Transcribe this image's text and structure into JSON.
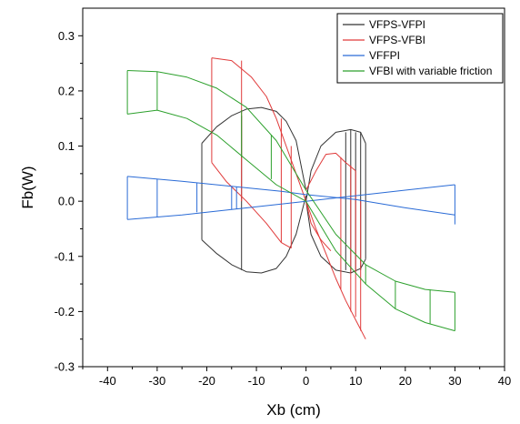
{
  "chart_data": {
    "type": "line",
    "title": "",
    "xlabel": "Xb (cm)",
    "ylabel": "Fb(W)",
    "xlim": [
      -45,
      40
    ],
    "ylim": [
      -0.3,
      0.35
    ],
    "x_ticks": [
      -40,
      -30,
      -20,
      -10,
      0,
      10,
      20,
      30,
      40
    ],
    "y_ticks": [
      -0.3,
      -0.2,
      -0.1,
      0.0,
      0.1,
      0.2,
      0.3
    ],
    "x_tick_labels": [
      "-40",
      "-30",
      "-20",
      "-10",
      "0",
      "10",
      "20",
      "30",
      "40"
    ],
    "y_tick_labels": [
      "-0.3",
      "-0.2",
      "-0.1",
      "0.0",
      "0.1",
      "0.2",
      "0.3"
    ],
    "grid": false,
    "legend_position": "top-right",
    "series": [
      {
        "name": "VFPS-VFPI",
        "color": "#333333",
        "segments": [
          [
            [
              -21,
              0.105
            ],
            [
              -18,
              0.135
            ],
            [
              -15,
              0.155
            ],
            [
              -12,
              0.167
            ],
            [
              -9,
              0.17
            ],
            [
              -6,
              0.163
            ],
            [
              -4,
              0.145
            ],
            [
              -2,
              0.11
            ],
            [
              0,
              0.02
            ]
          ],
          [
            [
              -21,
              -0.07
            ],
            [
              -18,
              -0.095
            ],
            [
              -15,
              -0.115
            ],
            [
              -12,
              -0.128
            ],
            [
              -9,
              -0.13
            ],
            [
              -6,
              -0.122
            ],
            [
              -4,
              -0.1
            ],
            [
              -2,
              -0.06
            ],
            [
              0,
              0.01
            ]
          ],
          [
            [
              -21,
              0.105
            ],
            [
              -21,
              -0.07
            ]
          ],
          [
            [
              -13,
              0.155
            ],
            [
              -13,
              -0.125
            ]
          ],
          [
            [
              0,
              0.0
            ],
            [
              1,
              0.055
            ],
            [
              3,
              0.1
            ],
            [
              6,
              0.125
            ],
            [
              9,
              0.13
            ],
            [
              11,
              0.125
            ],
            [
              12,
              0.105
            ]
          ],
          [
            [
              0,
              0.0
            ],
            [
              1,
              -0.06
            ],
            [
              3,
              -0.1
            ],
            [
              6,
              -0.125
            ],
            [
              9,
              -0.13
            ],
            [
              11,
              -0.122
            ],
            [
              12,
              -0.105
            ]
          ],
          [
            [
              12,
              0.105
            ],
            [
              12,
              -0.105
            ]
          ],
          [
            [
              8,
              0.125
            ],
            [
              8,
              -0.125
            ]
          ],
          [
            [
              9,
              0.13
            ],
            [
              9,
              -0.13
            ]
          ],
          [
            [
              10,
              0.125
            ],
            [
              10,
              -0.125
            ]
          ],
          [
            [
              11,
              0.125
            ],
            [
              11,
              -0.125
            ]
          ]
        ]
      },
      {
        "name": "VFPS-VFBI",
        "color": "#e03a3a",
        "segments": [
          [
            [
              -19,
              0.26
            ],
            [
              -15,
              0.255
            ],
            [
              -11,
              0.225
            ],
            [
              -8,
              0.19
            ],
            [
              -6,
              0.15
            ],
            [
              -4,
              0.1
            ],
            [
              -2,
              0.05
            ],
            [
              0,
              0.0
            ],
            [
              2,
              -0.05
            ],
            [
              4,
              -0.095
            ],
            [
              6,
              -0.14
            ],
            [
              8,
              -0.18
            ],
            [
              10,
              -0.215
            ],
            [
              12,
              -0.25
            ]
          ],
          [
            [
              -19,
              0.07
            ],
            [
              -16,
              0.035
            ],
            [
              -12,
              0.0
            ],
            [
              -8,
              -0.04
            ],
            [
              -5,
              -0.075
            ],
            [
              -3,
              -0.085
            ]
          ],
          [
            [
              -19,
              0.26
            ],
            [
              -19,
              0.07
            ]
          ],
          [
            [
              -13,
              0.255
            ],
            [
              -13,
              0.0
            ]
          ],
          [
            [
              -5,
              0.15
            ],
            [
              -5,
              -0.075
            ]
          ],
          [
            [
              -3,
              0.1
            ],
            [
              -3,
              -0.085
            ]
          ],
          [
            [
              0,
              0.02
            ],
            [
              2,
              0.055
            ],
            [
              4,
              0.085
            ],
            [
              6,
              0.087
            ],
            [
              8,
              0.07
            ],
            [
              10,
              0.055
            ]
          ],
          [
            [
              0,
              0.0
            ],
            [
              1,
              -0.04
            ],
            [
              3,
              -0.07
            ],
            [
              5,
              -0.09
            ]
          ],
          [
            [
              7,
              0.08
            ],
            [
              7,
              -0.16
            ]
          ],
          [
            [
              9,
              0.065
            ],
            [
              9,
              -0.2
            ]
          ],
          [
            [
              10,
              0.055
            ],
            [
              10,
              -0.21
            ]
          ],
          [
            [
              11,
              0.0
            ],
            [
              11,
              -0.235
            ]
          ]
        ]
      },
      {
        "name": "VFFPI",
        "color": "#2a6bd6",
        "segments": [
          [
            [
              -36,
              0.045
            ],
            [
              -25,
              0.036
            ],
            [
              -15,
              0.027
            ],
            [
              -5,
              0.018
            ],
            [
              0,
              0.012
            ],
            [
              10,
              0.003
            ],
            [
              20,
              -0.012
            ],
            [
              30,
              -0.025
            ]
          ],
          [
            [
              -36,
              -0.033
            ],
            [
              -25,
              -0.025
            ],
            [
              -15,
              -0.015
            ],
            [
              -5,
              -0.005
            ],
            [
              0,
              0.0
            ],
            [
              10,
              0.01
            ],
            [
              20,
              0.02
            ],
            [
              30,
              0.03
            ]
          ],
          [
            [
              -36,
              0.045
            ],
            [
              -36,
              -0.033
            ]
          ],
          [
            [
              -30,
              0.04
            ],
            [
              -30,
              -0.028
            ]
          ],
          [
            [
              -22,
              0.033
            ],
            [
              -22,
              -0.02
            ]
          ],
          [
            [
              -15,
              0.027
            ],
            [
              -15,
              -0.015
            ]
          ],
          [
            [
              -14,
              0.026
            ],
            [
              -14,
              -0.014
            ]
          ],
          [
            [
              30,
              0.03
            ],
            [
              30,
              -0.042
            ]
          ]
        ]
      },
      {
        "name": "VFBI with variable friction",
        "color": "#2ca02c",
        "segments": [
          [
            [
              -36,
              0.237
            ],
            [
              -30,
              0.235
            ],
            [
              -24,
              0.225
            ],
            [
              -18,
              0.205
            ],
            [
              -12,
              0.17
            ],
            [
              -6,
              0.11
            ],
            [
              0,
              0.02
            ],
            [
              6,
              -0.06
            ],
            [
              12,
              -0.115
            ],
            [
              18,
              -0.145
            ],
            [
              24,
              -0.16
            ],
            [
              30,
              -0.165
            ]
          ],
          [
            [
              -36,
              0.158
            ],
            [
              -30,
              0.165
            ],
            [
              -24,
              0.15
            ],
            [
              -18,
              0.12
            ],
            [
              -12,
              0.075
            ],
            [
              -6,
              0.03
            ],
            [
              0,
              0.0
            ],
            [
              6,
              -0.09
            ],
            [
              12,
              -0.15
            ],
            [
              18,
              -0.195
            ],
            [
              24,
              -0.22
            ],
            [
              30,
              -0.235
            ]
          ],
          [
            [
              -36,
              0.237
            ],
            [
              -36,
              0.158
            ]
          ],
          [
            [
              -30,
              0.235
            ],
            [
              -30,
              0.165
            ]
          ],
          [
            [
              -13,
              0.165
            ],
            [
              -13,
              0.08
            ]
          ],
          [
            [
              -7,
              0.12
            ],
            [
              -7,
              0.04
            ]
          ],
          [
            [
              12,
              -0.115
            ],
            [
              12,
              -0.15
            ]
          ],
          [
            [
              18,
              -0.145
            ],
            [
              18,
              -0.195
            ]
          ],
          [
            [
              25,
              -0.16
            ],
            [
              25,
              -0.222
            ]
          ],
          [
            [
              30,
              -0.165
            ],
            [
              30,
              -0.235
            ]
          ]
        ]
      }
    ]
  }
}
